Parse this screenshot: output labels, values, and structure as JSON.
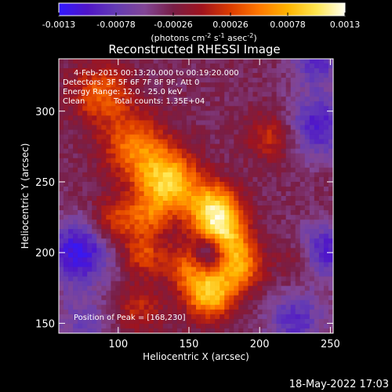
{
  "chart_data": {
    "type": "heatmap",
    "title": "Reconstructed RHESSI Image",
    "xlabel": "Heliocentric X (arcsec)",
    "ylabel": "Heliocentric Y (arcsec)",
    "xlim": [
      58,
      252
    ],
    "ylim": [
      143,
      337
    ],
    "xticks": [
      100,
      150,
      200,
      250
    ],
    "yticks": [
      150,
      200,
      250,
      300
    ],
    "colorbar": {
      "range": [
        -0.0013,
        0.0013
      ],
      "ticks": [
        -0.0013,
        -0.00078,
        -0.00026,
        0.00026,
        0.00078,
        0.0013
      ],
      "tick_labels": [
        "-0.0013",
        "-0.00078",
        "-0.00026",
        "0.00026",
        "0.00078",
        "0.0013"
      ],
      "unit_label": "(photons cm",
      "unit_exp1": "-2",
      "unit_mid": " s",
      "unit_exp2": "-1",
      "unit_end": " asec",
      "unit_exp3": "-2",
      "unit_close": ")"
    },
    "annotations": {
      "time_range": "4-Feb-2015 00:13:20.000 to 00:19:20.000",
      "detectors": "Detectors: 3F 5F 6F 7F 8F 9F, Att 0",
      "energy": "Energy Range: 12.0 - 25.0 keV",
      "clean": "Clean",
      "counts": "Total counts: 1.35E+04",
      "peak": "Position of Peak = [168,230]"
    },
    "footer_date": "18-May-2022 17:03",
    "peak_position": [
      168,
      230
    ],
    "sources": [
      {
        "x": 135,
        "y": 250,
        "amp": 0.00125,
        "sigma": 15
      },
      {
        "x": 168,
        "y": 230,
        "amp": 0.0013,
        "sigma": 13
      },
      {
        "x": 175,
        "y": 210,
        "amp": 0.00095,
        "sigma": 12
      },
      {
        "x": 185,
        "y": 190,
        "amp": 0.0009,
        "sigma": 12
      },
      {
        "x": 165,
        "y": 170,
        "amp": 0.00115,
        "sigma": 12
      },
      {
        "x": 150,
        "y": 190,
        "amp": 0.0007,
        "sigma": 12
      },
      {
        "x": 112,
        "y": 275,
        "amp": 0.0008,
        "sigma": 16
      },
      {
        "x": 88,
        "y": 312,
        "amp": 0.0007,
        "sigma": 15
      },
      {
        "x": 98,
        "y": 222,
        "amp": 0.0006,
        "sigma": 12
      },
      {
        "x": 118,
        "y": 198,
        "amp": 0.0006,
        "sigma": 10
      },
      {
        "x": 208,
        "y": 282,
        "amp": 0.0005,
        "sigma": 12
      },
      {
        "x": 122,
        "y": 225,
        "amp": 0.00055,
        "sigma": 10
      },
      {
        "x": 115,
        "y": 160,
        "amp": 0.00045,
        "sigma": 12
      },
      {
        "x": 230,
        "y": 195,
        "amp": 0.0004,
        "sigma": 11
      },
      {
        "x": 165,
        "y": 200,
        "amp": -0.0009,
        "sigma": 9
      },
      {
        "x": 72,
        "y": 200,
        "amp": -0.0009,
        "sigma": 16
      },
      {
        "x": 242,
        "y": 290,
        "amp": -0.0007,
        "sigma": 16
      },
      {
        "x": 245,
        "y": 200,
        "amp": -0.0008,
        "sigma": 14
      },
      {
        "x": 225,
        "y": 152,
        "amp": -0.0006,
        "sigma": 14
      },
      {
        "x": 240,
        "y": 335,
        "amp": -0.0006,
        "sigma": 12
      },
      {
        "x": 75,
        "y": 150,
        "amp": -0.0004,
        "sigma": 14
      }
    ],
    "colormap": [
      "#3219ff",
      "#5016c8",
      "#643cb4",
      "#824696",
      "#781e46",
      "#a0141e",
      "#dc3c00",
      "#ff7800",
      "#ffb400",
      "#ffe650",
      "#fffff0"
    ]
  }
}
